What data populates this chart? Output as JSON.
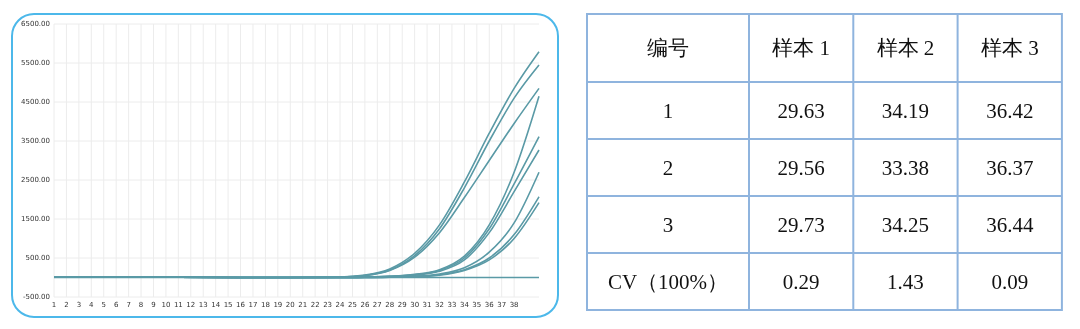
{
  "chart_data": [
    {
      "type": "line",
      "xlim": [
        1,
        40
      ],
      "ylim": [
        -500,
        6500
      ],
      "xticks": [
        1,
        2,
        3,
        4,
        5,
        6,
        7,
        8,
        9,
        10,
        11,
        12,
        13,
        14,
        15,
        16,
        17,
        18,
        19,
        20,
        21,
        22,
        23,
        24,
        25,
        26,
        27,
        28,
        29,
        30,
        31,
        32,
        33,
        34,
        35,
        36,
        37,
        38
      ],
      "yticks": [
        {
          "value": -500,
          "label": "-500.00"
        },
        {
          "value": 500,
          "label": "500.00"
        },
        {
          "value": 1500,
          "label": "1500.00"
        },
        {
          "value": 2500,
          "label": "2500.00"
        },
        {
          "value": 3500,
          "label": "3500.00"
        },
        {
          "value": 4500,
          "label": "4500.00"
        },
        {
          "value": 5500,
          "label": "5500.00"
        },
        {
          "value": 6500,
          "label": "6500.00"
        }
      ],
      "grid": true,
      "marker": "none",
      "x": [
        1,
        20,
        24,
        26,
        28,
        30,
        32,
        34,
        36,
        38,
        40
      ],
      "series": [
        {
          "color": "#5a9aa6",
          "values": [
            20,
            0,
            10,
            60,
            220,
            620,
            1350,
            2450,
            3700,
            4850,
            5790
          ]
        },
        {
          "color": "#5a9aa6",
          "values": [
            20,
            0,
            10,
            50,
            190,
            560,
            1250,
            2300,
            3500,
            4600,
            5450
          ]
        },
        {
          "color": "#5a9aa6",
          "values": [
            20,
            0,
            10,
            50,
            180,
            520,
            1150,
            2050,
            3000,
            3950,
            4850
          ]
        },
        {
          "color": "#5a9aa6",
          "values": [
            20,
            0,
            0,
            10,
            30,
            80,
            200,
            550,
            1350,
            2700,
            4650
          ]
        },
        {
          "color": "#5a9aa6",
          "values": [
            20,
            0,
            0,
            10,
            30,
            70,
            180,
            500,
            1250,
            2400,
            3610
          ]
        },
        {
          "color": "#5a9aa6",
          "values": [
            20,
            0,
            0,
            10,
            30,
            60,
            160,
            450,
            1150,
            2200,
            3270
          ]
        },
        {
          "color": "#5a9aa6",
          "values": [
            20,
            0,
            0,
            0,
            10,
            30,
            90,
            250,
            650,
            1400,
            2700
          ]
        },
        {
          "color": "#5a9aa6",
          "values": [
            20,
            0,
            0,
            0,
            10,
            30,
            70,
            200,
            500,
            1100,
            2070
          ]
        },
        {
          "color": "#5a9aa6",
          "values": [
            20,
            0,
            0,
            0,
            10,
            20,
            60,
            180,
            450,
            1000,
            1920
          ]
        }
      ],
      "ref_lines": [
        {
          "axis": "y",
          "value": 0,
          "color": "#5a9aa6"
        }
      ]
    },
    {
      "type": "heatmap",
      "ylabel": "编号",
      "data_labels": true,
      "categories": [
        "样本 1",
        "样本 2",
        "样本 3"
      ],
      "y_categories": [
        "1",
        "2",
        "3",
        "CV（100%）"
      ],
      "cells": [
        [
          29.63,
          34.19,
          36.42
        ],
        [
          29.56,
          33.38,
          36.37
        ],
        [
          29.73,
          34.25,
          36.44
        ],
        [
          0.29,
          1.43,
          0.09
        ]
      ]
    }
  ]
}
